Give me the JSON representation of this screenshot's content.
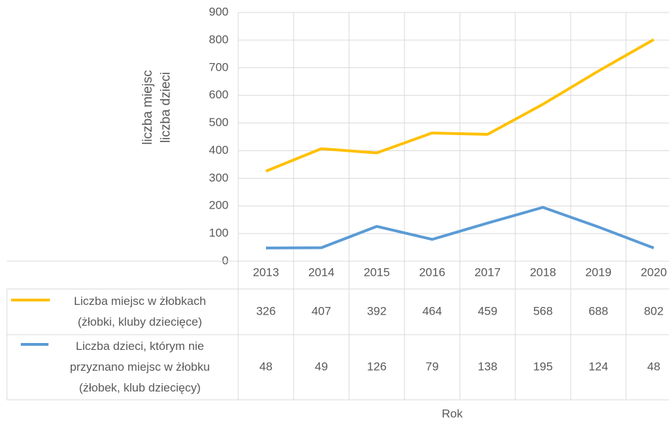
{
  "chart_data": {
    "type": "line",
    "y_label": [
      "liczba miejsc",
      "liczba dzieci"
    ],
    "x_label": "Rok",
    "categories": [
      "2013",
      "2014",
      "2015",
      "2016",
      "2017",
      "2018",
      "2019",
      "2020"
    ],
    "series": [
      {
        "name": "Liczba miejsc w żłobkach\n(żłobki, kluby dziecięce)",
        "color": "#ffc000",
        "values": [
          326,
          407,
          392,
          464,
          459,
          568,
          688,
          802
        ]
      },
      {
        "name": "Liczba dzieci, którym nie\nprzyznano miejsc w żłobku\n(żłobek, klub dziecięcy)",
        "color": "#5b9bd5",
        "values": [
          48,
          49,
          126,
          79,
          138,
          195,
          124,
          48
        ]
      }
    ],
    "ylim": [
      0,
      900
    ],
    "yticks": [
      0,
      100,
      200,
      300,
      400,
      500,
      600,
      700,
      800,
      900
    ],
    "grid": true
  }
}
